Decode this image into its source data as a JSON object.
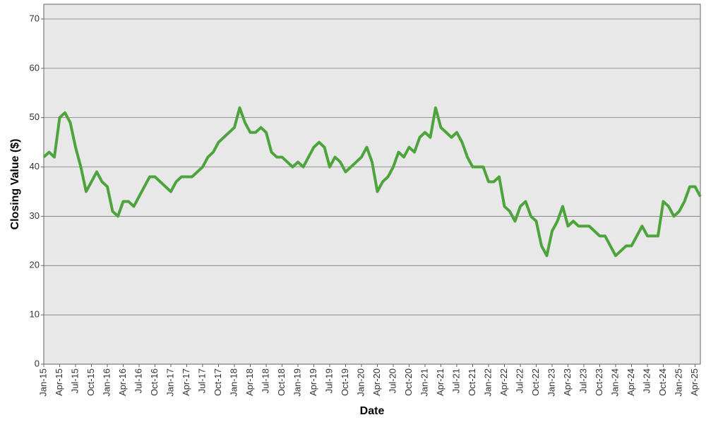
{
  "chart_data": {
    "type": "line",
    "x_label": "Date",
    "y_label": "Closing Value ($)",
    "categories": [
      "Jan-15",
      null,
      null,
      "Apr-15",
      null,
      null,
      "Jul-15",
      null,
      null,
      "Oct-15",
      null,
      null,
      "Jan-16",
      null,
      null,
      "Apr-16",
      null,
      null,
      "Jul-16",
      null,
      null,
      "Oct-16",
      null,
      null,
      "Jan-17",
      null,
      null,
      "Apr-17",
      null,
      null,
      "Jul-17",
      null,
      null,
      "Oct-17",
      null,
      null,
      "Jan-18",
      null,
      null,
      "Apr-18",
      null,
      null,
      "Jul-18",
      null,
      null,
      "Oct-18",
      null,
      null,
      "Jan-19",
      null,
      null,
      "Apr-19",
      null,
      null,
      "Jul-19",
      null,
      null,
      "Oct-19",
      null,
      null,
      "Jan-20",
      null,
      null,
      "Apr-20",
      null,
      null,
      "Jul-20",
      null,
      null,
      "Oct-20",
      null,
      null,
      "Jan-21",
      null,
      null,
      "Apr-21",
      null,
      null,
      "Jul-21",
      null,
      null,
      "Oct-21",
      null,
      null,
      "Jan-22",
      null,
      null,
      "Apr-22",
      null,
      null,
      "Jul-22",
      null,
      null,
      "Oct-22",
      null,
      null,
      "Jan-23",
      null,
      null,
      "Apr-23",
      null,
      null,
      "Jul-23",
      null,
      null,
      "Oct-23",
      null,
      null,
      "Jan-24",
      null,
      null,
      "Apr-24",
      null,
      null,
      "Jul-24",
      null,
      null,
      "Oct-24",
      null,
      null,
      "Jan-25",
      null,
      null,
      "Apr-25",
      null
    ],
    "values": [
      42,
      43,
      42,
      50,
      51,
      49,
      44,
      40,
      35,
      37,
      39,
      37,
      36,
      31,
      30,
      33,
      33,
      32,
      34,
      36,
      38,
      38,
      37,
      36,
      35,
      37,
      38,
      38,
      38,
      39,
      40,
      42,
      43,
      45,
      46,
      47,
      48,
      52,
      49,
      47,
      47,
      48,
      47,
      43,
      42,
      42,
      41,
      40,
      41,
      40,
      42,
      44,
      45,
      44,
      40,
      42,
      41,
      39,
      40,
      41,
      42,
      44,
      41,
      35,
      37,
      38,
      40,
      43,
      42,
      44,
      43,
      46,
      47,
      46,
      52,
      48,
      47,
      46,
      47,
      45,
      42,
      40,
      40,
      40,
      37,
      37,
      38,
      32,
      31,
      29,
      32,
      33,
      30,
      29,
      24,
      22,
      27,
      29,
      32,
      28,
      29,
      28,
      28,
      28,
      27,
      26,
      26,
      24,
      22,
      23,
      24,
      24,
      26,
      28,
      26,
      26,
      26,
      33,
      32,
      30,
      31,
      33,
      36,
      36,
      34
    ],
    "color": "#4ea43c",
    "ylim": [
      0,
      73
    ],
    "yticks": [
      0,
      10,
      20,
      30,
      40,
      50,
      60,
      70
    ],
    "grid": true
  }
}
